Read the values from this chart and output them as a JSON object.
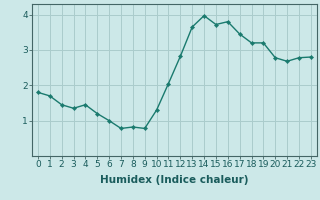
{
  "x": [
    0,
    1,
    2,
    3,
    4,
    5,
    6,
    7,
    8,
    9,
    10,
    11,
    12,
    13,
    14,
    15,
    16,
    17,
    18,
    19,
    20,
    21,
    22,
    23
  ],
  "y": [
    1.8,
    1.7,
    1.45,
    1.35,
    1.45,
    1.2,
    1.0,
    0.78,
    0.82,
    0.78,
    1.3,
    2.05,
    2.82,
    3.65,
    3.97,
    3.72,
    3.8,
    3.45,
    3.2,
    3.2,
    2.78,
    2.68,
    2.78,
    2.8
  ],
  "line_color": "#1a7a6e",
  "marker": "D",
  "marker_size": 2.2,
  "background_color": "#cce8e8",
  "grid_color": "#aacccc",
  "xlabel": "Humidex (Indice chaleur)",
  "ylabel": "",
  "title": "",
  "ylim": [
    0,
    4.3
  ],
  "xlim": [
    -0.5,
    23.5
  ],
  "yticks": [
    1,
    2,
    3,
    4
  ],
  "xticks": [
    0,
    1,
    2,
    3,
    4,
    5,
    6,
    7,
    8,
    9,
    10,
    11,
    12,
    13,
    14,
    15,
    16,
    17,
    18,
    19,
    20,
    21,
    22,
    23
  ],
  "tick_fontsize": 6.5,
  "xlabel_fontsize": 7.5,
  "linewidth": 1.0,
  "spine_color": "#446666",
  "tick_color": "#446666",
  "label_color": "#1a5c5c"
}
